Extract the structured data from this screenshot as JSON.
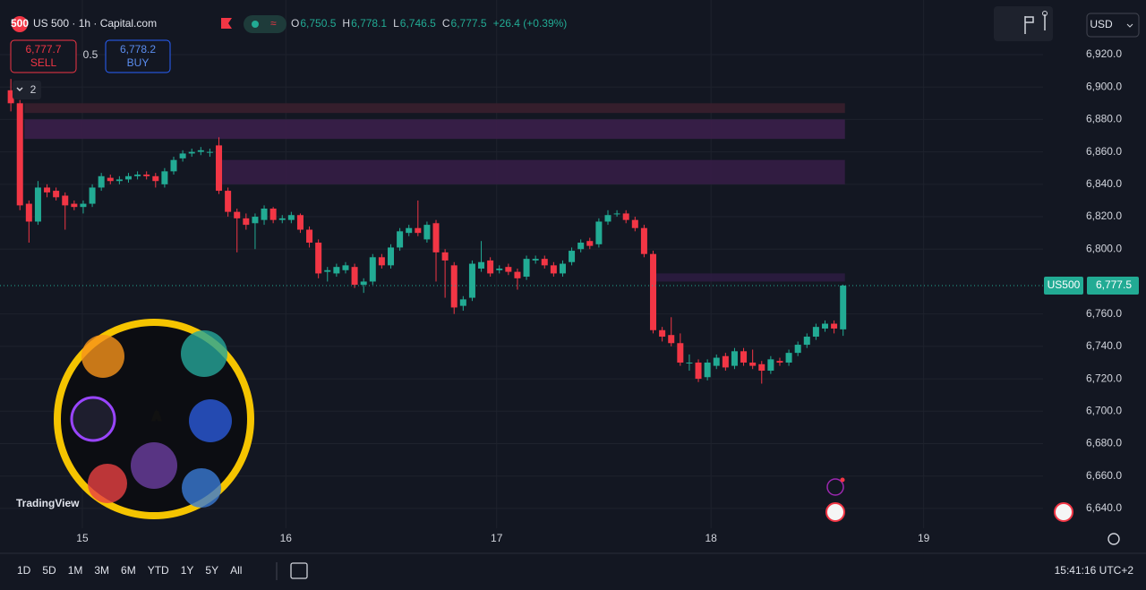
{
  "header": {
    "title": "US 500 · 1h · Capital.com",
    "icon": "500",
    "ohlc": [
      {
        "label": "O",
        "value": "6,750.5"
      },
      {
        "label": "H",
        "value": "6,778.1"
      },
      {
        "label": "L",
        "value": "6,746.5"
      },
      {
        "label": "C",
        "value": "6,777.5"
      }
    ],
    "change": "+26.4 (+0.39%)",
    "sell": {
      "price": "6,777.7",
      "label": "SELL"
    },
    "spread": "0.5",
    "buy": {
      "price": "6,778.2",
      "label": "BUY"
    },
    "indicators": "2",
    "currency": "USD"
  },
  "watermark": "TradingView",
  "logo": {
    "letter": "A"
  },
  "toolbar": {
    "timeframes": [
      "1D",
      "5D",
      "1M",
      "3M",
      "6M",
      "YTD",
      "1Y",
      "5Y",
      "All"
    ],
    "clock": "15:41:16 UTC+2"
  },
  "chart_data": {
    "type": "candlestick",
    "up_color": "#22ab94",
    "down_color": "#f23645",
    "open": [
      6898,
      6890,
      6828,
      6817,
      6838,
      6836,
      6833,
      6828,
      6826,
      6828,
      6838,
      6844,
      6842,
      6843,
      6845,
      6846,
      6845,
      6840,
      6848,
      6856,
      6859,
      6860,
      6860,
      6864,
      6836,
      6823,
      6819,
      6816,
      6818,
      6825,
      6818,
      6818,
      6821,
      6812,
      6804,
      6786,
      6785,
      6787,
      6789,
      6778,
      6780,
      6795,
      6790,
      6801,
      6810,
      6813,
      6806,
      6816,
      6798,
      6790,
      6765,
      6770,
      6788,
      6793,
      6787,
      6789,
      6786,
      6783,
      6793,
      6794,
      6790,
      6785,
      6792,
      6800,
      6805,
      6803,
      6817,
      6822,
      6822,
      6818,
      6813,
      6797,
      6750,
      6747,
      6742,
      6730,
      6730,
      6721,
      6728,
      6734,
      6728,
      6737,
      6730,
      6729,
      6725,
      6731,
      6730,
      6736,
      6741,
      6746,
      6751,
      6754,
      6750.5
    ],
    "high": [
      6905,
      6892,
      6830,
      6842,
      6840,
      6838,
      6835,
      6830,
      6830,
      6840,
      6847,
      6846,
      6845,
      6847,
      6848,
      6848,
      6847,
      6850,
      6857,
      6861,
      6862,
      6863,
      6862,
      6869,
      6838,
      6825,
      6822,
      6822,
      6827,
      6826,
      6821,
      6823,
      6822,
      6814,
      6806,
      6789,
      6791,
      6792,
      6791,
      6782,
      6797,
      6797,
      6803,
      6813,
      6815,
      6830,
      6817,
      6818,
      6800,
      6792,
      6771,
      6793,
      6805,
      6795,
      6790,
      6791,
      6788,
      6796,
      6796,
      6796,
      6792,
      6793,
      6801,
      6806,
      6807,
      6819,
      6824,
      6824,
      6824,
      6820,
      6815,
      6799,
      6752,
      6758,
      6748,
      6735,
      6732,
      6732,
      6735,
      6736,
      6739,
      6739,
      6738,
      6731,
      6734,
      6733,
      6738,
      6743,
      6748,
      6754,
      6756,
      6756,
      6778.1
    ],
    "low": [
      6885,
      6824,
      6804,
      6815,
      6832,
      6830,
      6812,
      6824,
      6822,
      6826,
      6836,
      6840,
      6840,
      6841,
      6843,
      6843,
      6838,
      6838,
      6846,
      6854,
      6857,
      6858,
      6857,
      6834,
      6820,
      6798,
      6812,
      6800,
      6815,
      6816,
      6816,
      6816,
      6810,
      6801,
      6782,
      6780,
      6783,
      6785,
      6776,
      6773,
      6778,
      6788,
      6788,
      6799,
      6808,
      6808,
      6804,
      6780,
      6770,
      6760,
      6762,
      6768,
      6786,
      6783,
      6785,
      6784,
      6775,
      6781,
      6791,
      6788,
      6783,
      6783,
      6790,
      6798,
      6800,
      6801,
      6815,
      6820,
      6816,
      6811,
      6795,
      6748,
      6743,
      6740,
      6728,
      6725,
      6718,
      6719,
      6726,
      6725,
      6726,
      6728,
      6726,
      6717,
      6723,
      6728,
      6728,
      6734,
      6739,
      6744,
      6749,
      6748,
      6746.5
    ],
    "close": [
      6890,
      6827,
      6817,
      6838,
      6835,
      6832,
      6827,
      6826,
      6828,
      6838,
      6845,
      6842,
      6843,
      6845,
      6846,
      6845,
      6842,
      6848,
      6855,
      6859,
      6860,
      6861,
      6860,
      6836,
      6823,
      6819,
      6815,
      6820,
      6825,
      6818,
      6819,
      6821,
      6812,
      6804,
      6785,
      6787,
      6789,
      6790,
      6778,
      6780,
      6795,
      6790,
      6801,
      6811,
      6813,
      6810,
      6815,
      6798,
      6793,
      6764,
      6769,
      6791,
      6792,
      6785,
      6788,
      6786,
      6782,
      6794,
      6794,
      6790,
      6785,
      6791,
      6799,
      6804,
      6802,
      6817,
      6821,
      6822,
      6818,
      6813,
      6797,
      6750,
      6746,
      6742,
      6730,
      6730,
      6720,
      6730,
      6733,
      6727,
      6737,
      6730,
      6728,
      6725,
      6732,
      6730,
      6736,
      6741,
      6746,
      6752,
      6754,
      6751,
      6777.5
    ],
    "zones": [
      {
        "from": 6884,
        "to": 6890,
        "start": 1.5,
        "end": 92.2,
        "color": "#3a1f2e"
      },
      {
        "from": 6868,
        "to": 6880,
        "start": 1.5,
        "end": 92.2,
        "color": "#3b1f4a"
      },
      {
        "from": 6840,
        "to": 6855,
        "start": 22.8,
        "end": 92.2,
        "color": "#351d45"
      },
      {
        "from": 6780,
        "to": 6785,
        "start": 70.8,
        "end": 92.2,
        "color": "#2c1c40"
      }
    ],
    "xlim": [
      -1.2,
      114.1
    ],
    "xticks": [
      {
        "value": 7.9,
        "label": "15"
      },
      {
        "value": 30.4,
        "label": "16"
      },
      {
        "value": 53.7,
        "label": "17"
      },
      {
        "value": 77.4,
        "label": "18"
      },
      {
        "value": 100.9,
        "label": "19"
      }
    ],
    "ylim": [
      6627.8,
      6953.7
    ],
    "yticks": [
      {
        "value": 6640,
        "label": "6,640.0"
      },
      {
        "value": 6660,
        "label": "6,660.0"
      },
      {
        "value": 6680,
        "label": "6,680.0"
      },
      {
        "value": 6700,
        "label": "6,700.0"
      },
      {
        "value": 6720,
        "label": "6,720.0"
      },
      {
        "value": 6740,
        "label": "6,740.0"
      },
      {
        "value": 6760,
        "label": "6,760.0"
      },
      {
        "value": 6800,
        "label": "6,800.0"
      },
      {
        "value": 6820,
        "label": "6,820.0"
      },
      {
        "value": 6840,
        "label": "6,840.0"
      },
      {
        "value": 6860,
        "label": "6,860.0"
      },
      {
        "value": 6880,
        "label": "6,880.0"
      },
      {
        "value": 6900,
        "label": "6,900.0"
      },
      {
        "value": 6920,
        "label": "6,920.0"
      }
    ],
    "grid": true,
    "last_price": {
      "symbol": "US500",
      "label": "6,777.5"
    }
  }
}
